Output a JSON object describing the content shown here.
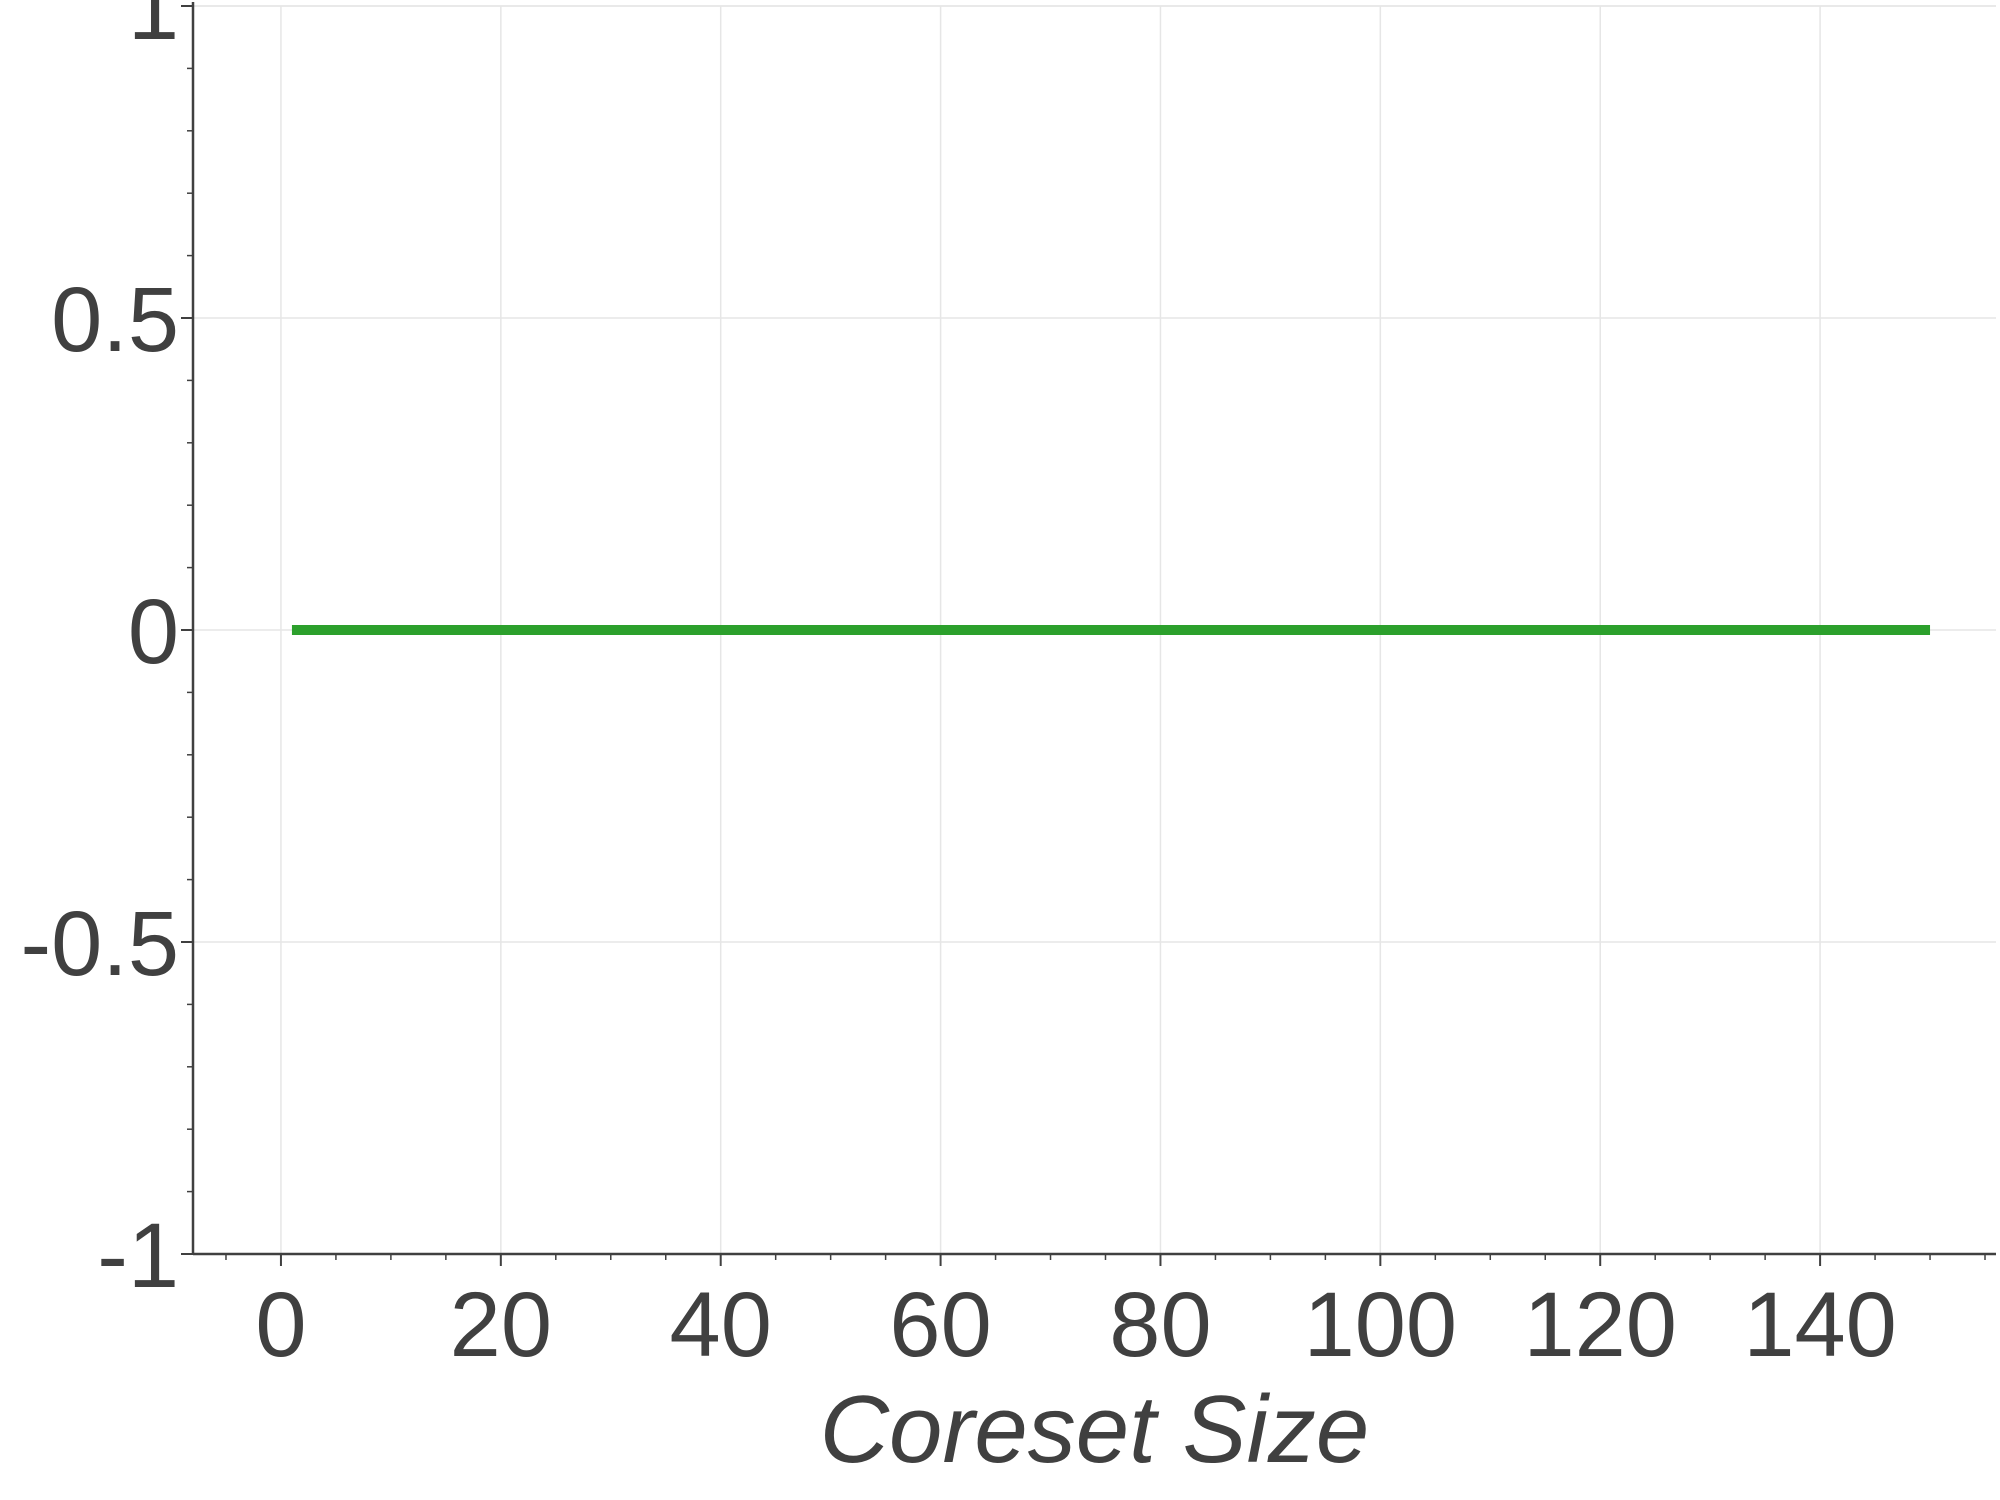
{
  "chart_data": {
    "type": "line",
    "title": "",
    "xlabel": "Coreset Size",
    "ylabel": "",
    "xlim": [
      -8,
      156
    ],
    "ylim": [
      -1,
      1
    ],
    "x_ticks": [
      0,
      20,
      40,
      60,
      80,
      100,
      120,
      140
    ],
    "x_tick_labels": [
      "0",
      "20",
      "40",
      "60",
      "80",
      "100",
      "120",
      "140"
    ],
    "y_ticks": [
      -1,
      -0.5,
      0,
      0.5,
      1
    ],
    "y_tick_labels": [
      "-1",
      "-0.5",
      "0",
      "0.5",
      "1"
    ],
    "grid": true,
    "series": [
      {
        "color": "#2ca02c",
        "x": [
          1,
          150
        ],
        "y": [
          0,
          0
        ]
      }
    ]
  }
}
